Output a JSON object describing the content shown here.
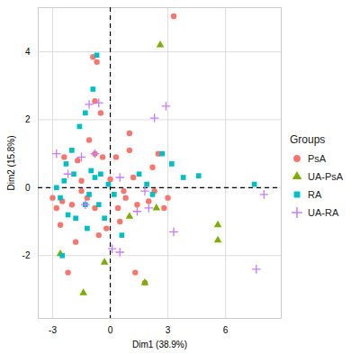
{
  "chart_data": {
    "type": "scatter",
    "x_label": "Dim1 (38.9%)",
    "y_label": "Dim2 (15.8%)",
    "legend_title": "Groups",
    "legend": "right",
    "grid": true,
    "xlim": [
      -3.75,
      8.9
    ],
    "ylim": [
      -3.85,
      5.3
    ],
    "xticks": [
      -3,
      0,
      3,
      6
    ],
    "yticks": [
      -2,
      0,
      2,
      4
    ],
    "reference_lines": {
      "x": [
        0
      ],
      "y": [
        0
      ]
    },
    "series": [
      {
        "name": "PsA",
        "color": "#F8766D",
        "marker": "circle",
        "x": [
          3.3,
          -0.9,
          -0.7,
          -0.8,
          -0.5,
          1.0,
          1.0,
          -1.1,
          0.0,
          1.2,
          -3.0,
          -2.8,
          -2.6,
          -2.5,
          -2.0,
          -1.5,
          -1.2,
          -0.8,
          0.4,
          0.8,
          1.4,
          2.0,
          2.3,
          2.8,
          3.0,
          -1.8,
          -2.2,
          -0.2,
          -0.6,
          0.5,
          1.3,
          1.8,
          0.3,
          2.5,
          -2.4,
          -1.7,
          -0.4,
          0.7,
          -0.8,
          -1.5,
          2.2
        ],
        "y": [
          5.05,
          3.85,
          3.7,
          2.55,
          2.2,
          1.6,
          1.1,
          1.4,
          0.25,
          0.3,
          -0.3,
          -0.6,
          -1.1,
          -0.4,
          -0.5,
          -0.1,
          -0.3,
          -0.6,
          -0.6,
          -0.3,
          -0.5,
          -0.4,
          -0.1,
          -0.6,
          -0.3,
          -1.6,
          -2.5,
          -1.2,
          -1.4,
          -1.0,
          -2.5,
          -2.8,
          0.9,
          1.0,
          0.9,
          0.8,
          0.9,
          -0.1,
          1.0,
          0.2,
          0.6
        ]
      },
      {
        "name": "UA-PsA",
        "color": "#7CAE00",
        "marker": "triangle",
        "x": [
          2.6,
          1.0,
          5.6,
          5.6,
          -2.6,
          -1.4,
          -0.3,
          1.8,
          2.4
        ],
        "y": [
          4.2,
          -0.85,
          -1.1,
          -1.55,
          -1.95,
          -3.1,
          -2.2,
          -2.8,
          -0.6
        ]
      },
      {
        "name": "RA",
        "color": "#00BFC4",
        "marker": "square",
        "x": [
          -0.7,
          -0.9,
          -1.3,
          -1.6,
          -2.3,
          -1.9,
          -1.0,
          -0.8,
          -0.5,
          -2.8,
          -2.6,
          -2.5,
          -2.2,
          -1.8,
          -1.3,
          -1.1,
          -0.6,
          -0.3,
          0.2,
          0.6,
          1.5,
          1.9,
          2.2,
          3.2,
          3.8,
          4.6,
          7.5,
          2.7,
          -1.2,
          -0.1,
          -2.0,
          -2.4
        ],
        "y": [
          3.9,
          2.9,
          2.2,
          1.8,
          0.7,
          0.4,
          0.5,
          0.3,
          0.4,
          0.0,
          -0.3,
          -2.0,
          -0.8,
          -0.9,
          -0.5,
          -0.2,
          -0.5,
          -0.9,
          -0.2,
          -1.4,
          0.4,
          0.1,
          -0.2,
          0.7,
          0.3,
          0.35,
          0.1,
          1.0,
          -1.2,
          0.1,
          1.1,
          0.2
        ]
      },
      {
        "name": "UA-RA",
        "color": "#C77CFF",
        "marker": "plus",
        "x": [
          -0.6,
          -1.1,
          -1.5,
          -0.8,
          2.3,
          2.9,
          -2.8,
          -2.2,
          1.8,
          1.4,
          0.5,
          0.1,
          3.3,
          8.0,
          7.6,
          -1.3,
          0.5,
          2.0
        ],
        "y": [
          2.5,
          2.45,
          0.9,
          1.0,
          2.05,
          2.4,
          1.0,
          0.4,
          -0.1,
          -0.7,
          -1.9,
          -1.8,
          -1.3,
          -0.2,
          -2.4,
          -0.5,
          0.3,
          -0.6
        ]
      }
    ]
  }
}
